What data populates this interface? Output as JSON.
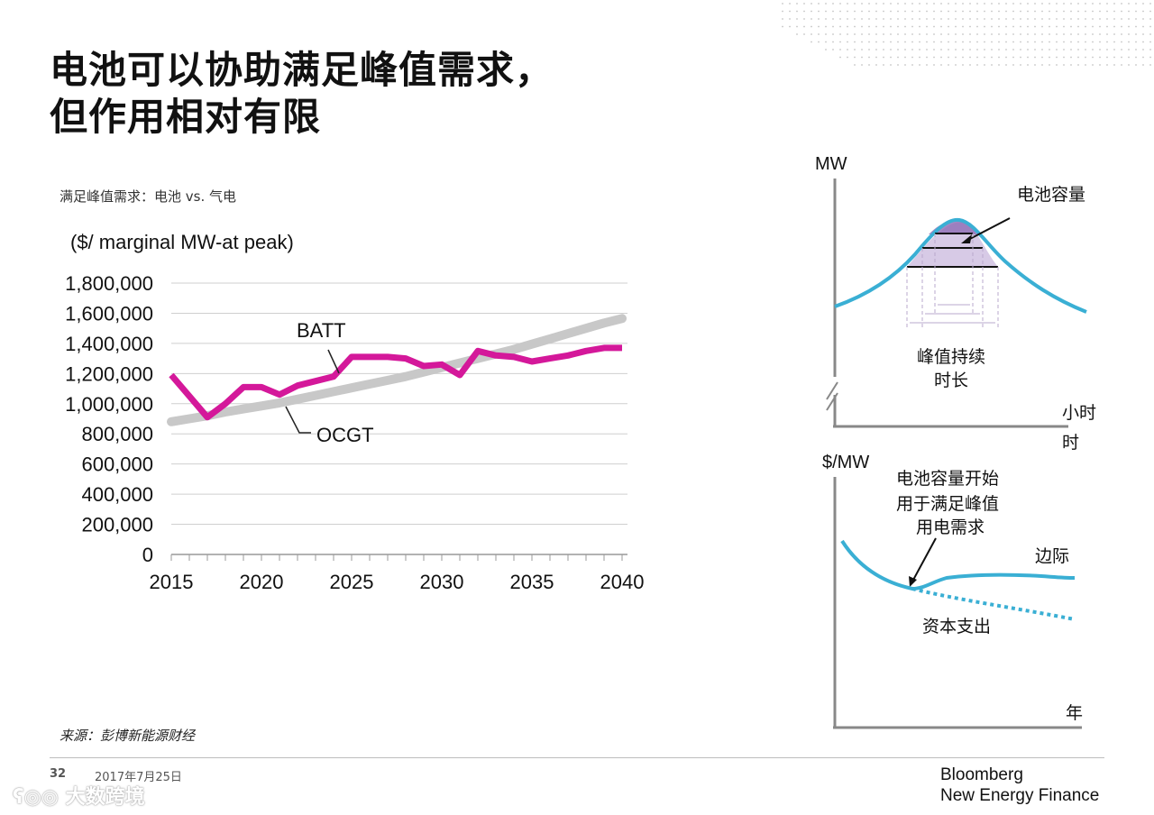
{
  "title_lines": [
    "电池可以协助满足峰值需求，",
    "但作用相对有限"
  ],
  "subtitle": "满足峰值需求：电池 vs. 气电",
  "source": "来源：彭博新能源财经",
  "footer": {
    "page": "32",
    "date": "2017年7月25日"
  },
  "brand": {
    "line1": "Bloomberg",
    "line2": "New Energy Finance"
  },
  "watermark": "大数跨境",
  "colors": {
    "batt": "#d4189a",
    "ocgt": "#c8c8c8",
    "curve": "#3aafd4",
    "fill": "#c9b8dd",
    "fill_dark": "#8e6bb5",
    "grid": "#cfcfcf"
  },
  "chart_data": [
    {
      "type": "line",
      "unit_label": "($/ marginal MW-at peak)",
      "x": [
        2015,
        2016,
        2017,
        2018,
        2019,
        2020,
        2021,
        2022,
        2023,
        2024,
        2025,
        2026,
        2027,
        2028,
        2029,
        2030,
        2031,
        2032,
        2033,
        2034,
        2035,
        2036,
        2037,
        2038,
        2039,
        2040
      ],
      "x_ticks": [
        2015,
        2020,
        2025,
        2030,
        2035,
        2040
      ],
      "x_tick_labels": [
        "2015",
        "2020",
        "2025",
        "2030",
        "2035",
        "2040"
      ],
      "y_ticks": [
        0,
        200000,
        400000,
        600000,
        800000,
        1000000,
        1200000,
        1400000,
        1600000,
        1800000
      ],
      "y_tick_labels": [
        "0",
        "200,000",
        "400,000",
        "600,000",
        "800,000",
        "1,000,000",
        "1,200,000",
        "1,400,000",
        "1,600,000",
        "1,800,000"
      ],
      "xlim": [
        2015,
        2040
      ],
      "ylim": [
        0,
        1800000
      ],
      "grid": true,
      "series": [
        {
          "name": "BATT",
          "label": "BATT",
          "values": [
            1190000,
            1050000,
            910000,
            1000000,
            1110000,
            1110000,
            1060000,
            1120000,
            1150000,
            1180000,
            1310000,
            1310000,
            1310000,
            1300000,
            1250000,
            1260000,
            1190000,
            1350000,
            1320000,
            1310000,
            1280000,
            1300000,
            1320000,
            1350000,
            1370000,
            1370000
          ]
        },
        {
          "name": "OCGT",
          "label": "OCGT",
          "values": [
            880000,
            900000,
            920000,
            945000,
            965000,
            985000,
            1005000,
            1030000,
            1055000,
            1080000,
            1105000,
            1130000,
            1155000,
            1180000,
            1210000,
            1240000,
            1270000,
            1300000,
            1330000,
            1360000,
            1395000,
            1430000,
            1465000,
            1500000,
            1535000,
            1565000
          ]
        }
      ]
    },
    {
      "type": "diagram",
      "y_label": "MW",
      "x_label": "小时",
      "annotations": {
        "capacity": "电池容量",
        "duration_line1": "峰值持续",
        "duration_line2": "时长"
      }
    },
    {
      "type": "diagram",
      "y_label": "$/MW",
      "x_label": "年",
      "annotations": {
        "note_line1": "电池容量开始",
        "note_line2": "用于满足峰值",
        "note_line3": "用电需求",
        "marginal": "边际",
        "capex": "资本支出"
      }
    }
  ]
}
